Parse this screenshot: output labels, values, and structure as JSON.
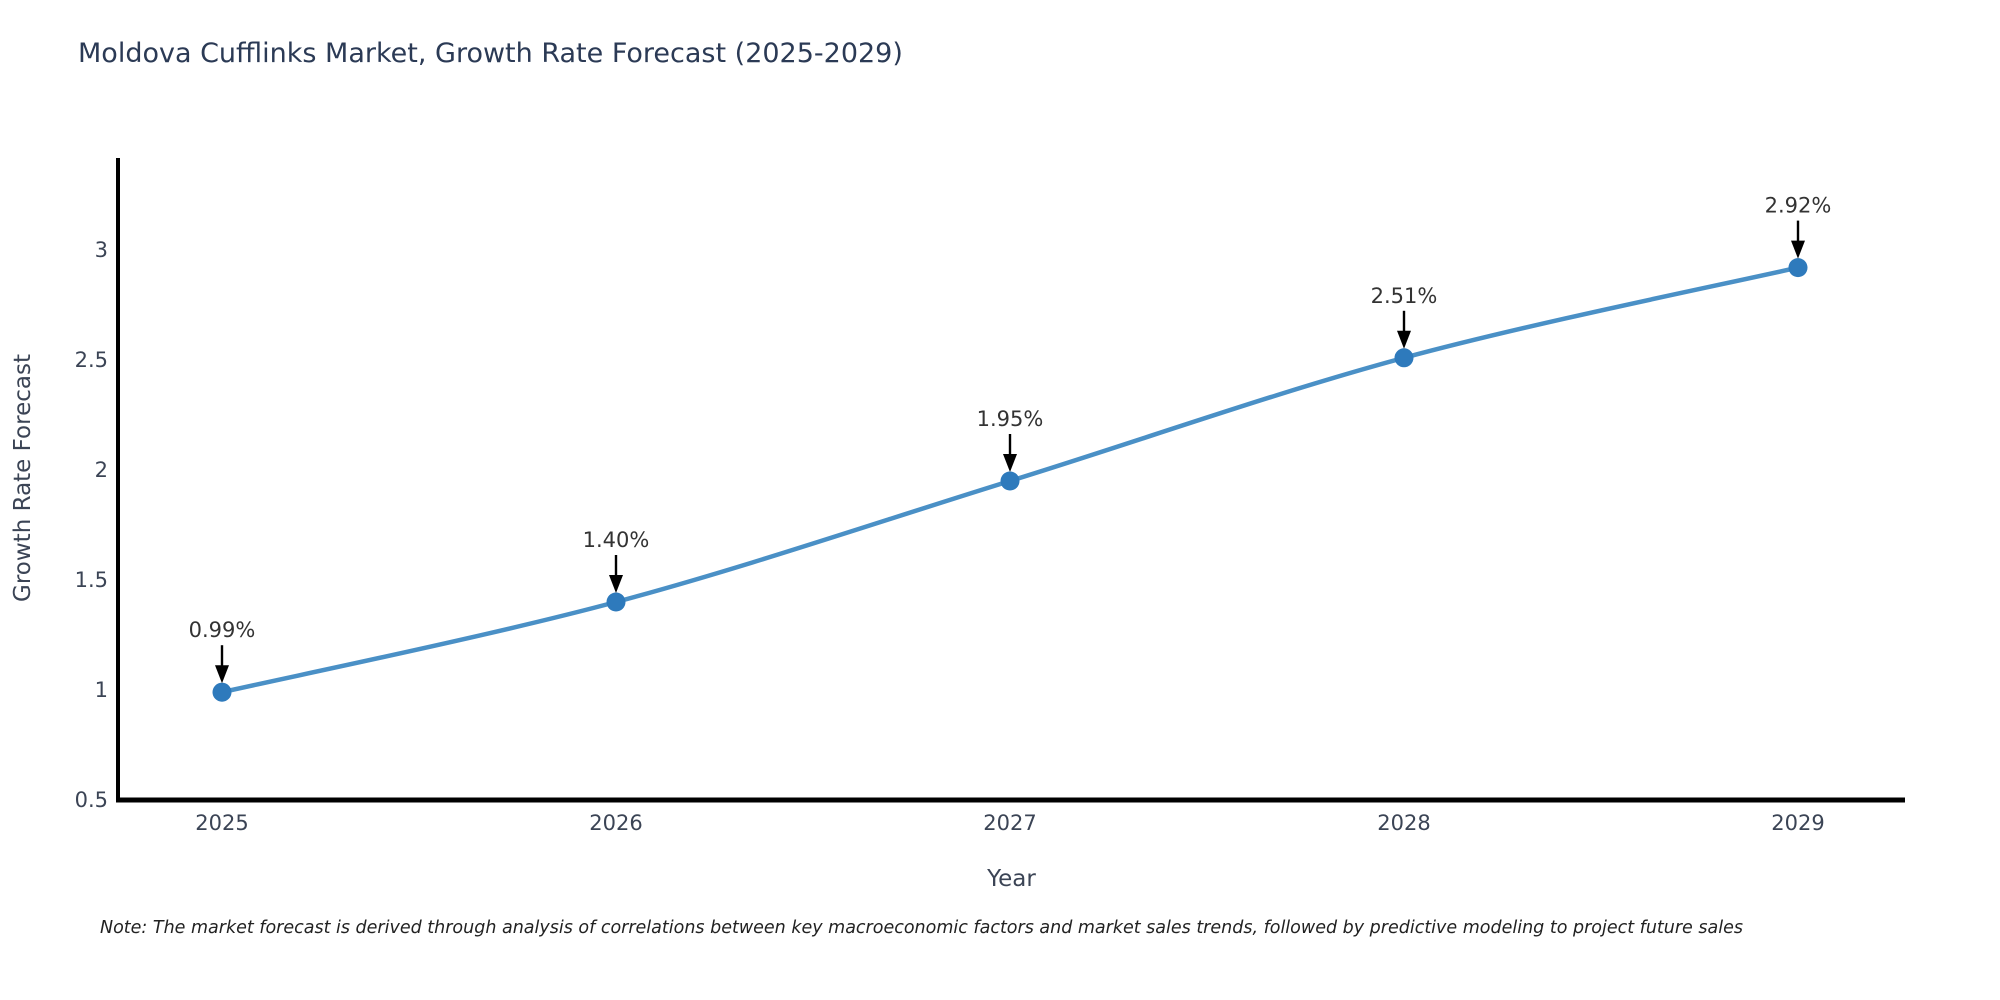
{
  "figure": {
    "title": "Moldova Cufflinks Market, Growth Rate Forecast (2025-2029)",
    "note": "Note: The market forecast is derived through analysis of correlations between key macroeconomic factors and market sales trends, followed by predictive modeling to project future sales"
  },
  "colors": {
    "background": "#ffffff",
    "title_text": "#2b3a55",
    "axis_line": "#000000",
    "tick_text": "#3b4455",
    "axis_title_text": "#3b4455",
    "line": "#4a90c6",
    "marker": "#2e7abc",
    "annotation_text": "#333333",
    "arrow": "#000000",
    "note_text": "#222222"
  },
  "chart_data": {
    "type": "line",
    "title": "Moldova Cufflinks Market, Growth Rate Forecast (2025-2029)",
    "xlabel": "Year",
    "ylabel": "Growth Rate Forecast",
    "x": [
      "2025",
      "2026",
      "2027",
      "2028",
      "2029"
    ],
    "values": [
      0.99,
      1.4,
      1.95,
      2.51,
      2.92
    ],
    "point_labels": [
      "0.99%",
      "1.40%",
      "1.95%",
      "2.51%",
      "2.92%"
    ],
    "yticks": [
      0.5,
      1,
      1.5,
      2,
      2.5,
      3
    ],
    "ytick_labels": [
      "0.5",
      "1",
      "1.5",
      "2",
      "2.5",
      "3"
    ],
    "ylim": [
      0.5,
      3.41
    ],
    "grid": false,
    "legend": false,
    "marker_style": "circle",
    "annotation_arrows": true
  }
}
